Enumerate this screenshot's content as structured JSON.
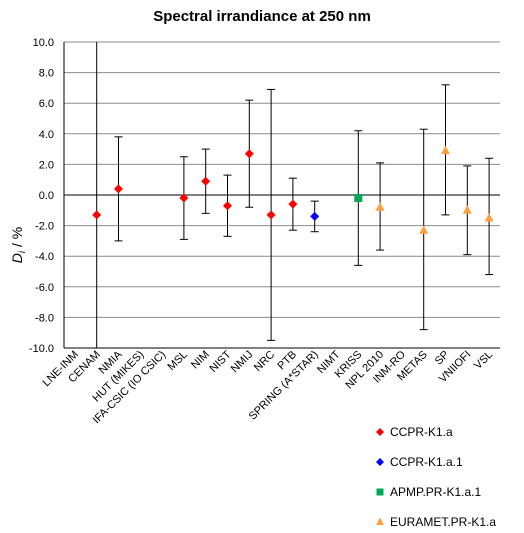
{
  "chart_data": {
    "type": "scatter",
    "title": "Spectral irrandiance at 250 nm",
    "ylabel": "D_i / %",
    "ylabel_main": "D",
    "ylabel_sub": "i",
    "ylabel_rest": " / %",
    "ylim": [
      -10,
      10
    ],
    "yticks": [
      "-10.0",
      "-8.0",
      "-6.0",
      "-4.0",
      "-2.0",
      "0.0",
      "2.0",
      "4.0",
      "6.0",
      "8.0",
      "10.0"
    ],
    "grid": true,
    "legend_position": "bottom-right",
    "categories": [
      "LNE-INM",
      "CENAM",
      "NMIA",
      "HUT (MIKES)",
      "IFA-CSIC (IO CSIC)",
      "MSL",
      "NIM",
      "NIST",
      "NMIJ",
      "NRC",
      "PTB",
      "SPRING (A*STAR)",
      "NIMT",
      "KRISS",
      "NPL 2010",
      "INM-RO",
      "METAS",
      "SP",
      "VNIIOFI",
      "VSL"
    ],
    "series": [
      {
        "name": "CCPR-K1.a",
        "color": "#ff0000",
        "marker": "diamond",
        "points": [
          {
            "x": "CENAM",
            "y": -1.3,
            "low": -10.0,
            "high": 10.0
          },
          {
            "x": "NMIA",
            "y": 0.4,
            "low": -3.0,
            "high": 3.8
          },
          {
            "x": "MSL",
            "y": -0.2,
            "low": -2.9,
            "high": 2.5
          },
          {
            "x": "NIM",
            "y": 0.9,
            "low": -1.2,
            "high": 3.0
          },
          {
            "x": "NIST",
            "y": -0.7,
            "low": -2.7,
            "high": 1.3
          },
          {
            "x": "NMIJ",
            "y": 2.7,
            "low": -0.8,
            "high": 6.2
          },
          {
            "x": "NRC",
            "y": -1.3,
            "low": -9.5,
            "high": 6.9
          },
          {
            "x": "PTB",
            "y": -0.6,
            "low": -2.3,
            "high": 1.1
          }
        ]
      },
      {
        "name": "CCPR-K1.a.1",
        "color": "#0000ff",
        "marker": "diamond",
        "points": [
          {
            "x": "SPRING (A*STAR)",
            "y": -1.4,
            "low": -2.4,
            "high": -0.4
          }
        ]
      },
      {
        "name": "APMP.PR-K1.a.1",
        "color": "#00a651",
        "marker": "square",
        "points": [
          {
            "x": "KRISS",
            "y": -0.2,
            "low": -4.6,
            "high": 4.2
          }
        ]
      },
      {
        "name": "EURAMET.PR-K1.a",
        "color": "#ffa040",
        "marker": "triangle",
        "points": [
          {
            "x": "NPL 2010",
            "y": -0.8,
            "low": -3.6,
            "high": 2.1
          },
          {
            "x": "METAS",
            "y": -2.3,
            "low": -8.8,
            "high": 4.3
          },
          {
            "x": "SP",
            "y": 2.9,
            "low": -1.3,
            "high": 7.2
          },
          {
            "x": "VNIIOFI",
            "y": -1.0,
            "low": -3.9,
            "high": 1.9
          },
          {
            "x": "VSL",
            "y": -1.5,
            "low": -5.2,
            "high": 2.4
          }
        ]
      }
    ]
  }
}
